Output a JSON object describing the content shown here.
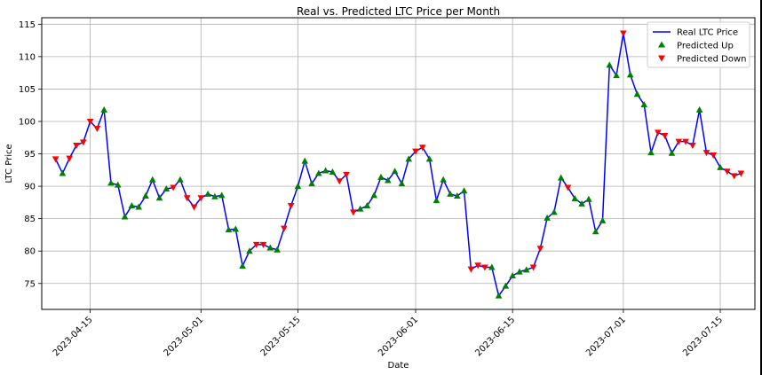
{
  "chart_data": {
    "type": "line",
    "title": "Real vs. Predicted LTC Price per Month",
    "xlabel": "Date",
    "ylabel": "LTC Price",
    "x_start": "2023-04-10",
    "x_end": "2023-07-18",
    "xlim": [
      "2023-04-08",
      "2023-07-20"
    ],
    "ylim": [
      71,
      116
    ],
    "grid": true,
    "legend_position": "top-right",
    "x_ticks": [
      "2023-04-15",
      "2023-05-01",
      "2023-05-15",
      "2023-06-01",
      "2023-06-15",
      "2023-07-01",
      "2023-07-15"
    ],
    "y_ticks": [
      75,
      80,
      85,
      90,
      95,
      100,
      105,
      110,
      115
    ],
    "series": [
      {
        "name": "Real LTC Price",
        "color": "#0000ff"
      },
      {
        "name": "Predicted Up",
        "color": "#008000",
        "marker": "triangle-up"
      },
      {
        "name": "Predicted Down",
        "color": "#ff0000",
        "marker": "triangle-down"
      }
    ],
    "values": [
      94.2,
      92.0,
      94.3,
      96.3,
      96.8,
      100.0,
      98.9,
      101.8,
      90.5,
      90.2,
      85.3,
      87.0,
      86.8,
      88.5,
      91.0,
      88.2,
      89.6,
      89.8,
      91.0,
      88.2,
      86.8,
      88.2,
      88.8,
      88.4,
      88.6,
      83.3,
      83.4,
      77.7,
      80.0,
      81.0,
      81.0,
      80.5,
      80.2,
      83.5,
      87.0,
      90.0,
      93.9,
      90.4,
      92.0,
      92.4,
      92.2,
      90.8,
      91.8,
      86.0,
      86.5,
      87.0,
      88.6,
      91.4,
      90.9,
      92.3,
      90.4,
      94.2,
      95.4,
      96.0,
      94.2,
      87.8,
      91.0,
      88.8,
      88.5,
      89.3,
      77.2,
      77.8,
      77.5,
      77.5,
      73.1,
      74.6,
      76.2,
      76.8,
      77.1,
      77.5,
      80.4,
      85.1,
      86.0,
      91.3,
      89.8,
      88.1,
      87.3,
      88.0,
      83.0,
      84.7,
      108.7,
      107.1,
      113.6,
      107.2,
      104.2,
      102.6,
      95.2,
      98.3,
      97.8,
      95.1,
      96.9,
      96.9,
      96.3,
      101.8,
      95.2,
      94.8,
      92.9,
      92.3,
      91.6,
      92.0
    ],
    "predicted": [
      "down",
      "up",
      "down",
      "down",
      "down",
      "down",
      "down",
      "up",
      "up",
      "up",
      "up",
      "up",
      "up",
      "up",
      "up",
      "up",
      "up",
      "down",
      "up",
      "down",
      "down",
      "down",
      "up",
      "up",
      "up",
      "up",
      "up",
      "up",
      "up",
      "down",
      "down",
      "up",
      "up",
      "down",
      "down",
      "up",
      "up",
      "up",
      "up",
      "up",
      "up",
      "down",
      "down",
      "down",
      "up",
      "up",
      "up",
      "up",
      "up",
      "up",
      "up",
      "up",
      "down",
      "down",
      "up",
      "up",
      "up",
      "up",
      "up",
      "up",
      "down",
      "down",
      "down",
      "up",
      "up",
      "up",
      "up",
      "up",
      "up",
      "down",
      "down",
      "up",
      "up",
      "up",
      "down",
      "up",
      "up",
      "up",
      "up",
      "up",
      "up",
      "up",
      "down",
      "up",
      "up",
      "up",
      "up",
      "down",
      "down",
      "up",
      "down",
      "down",
      "down",
      "up",
      "down",
      "down",
      "up",
      "down",
      "down",
      "down"
    ]
  }
}
